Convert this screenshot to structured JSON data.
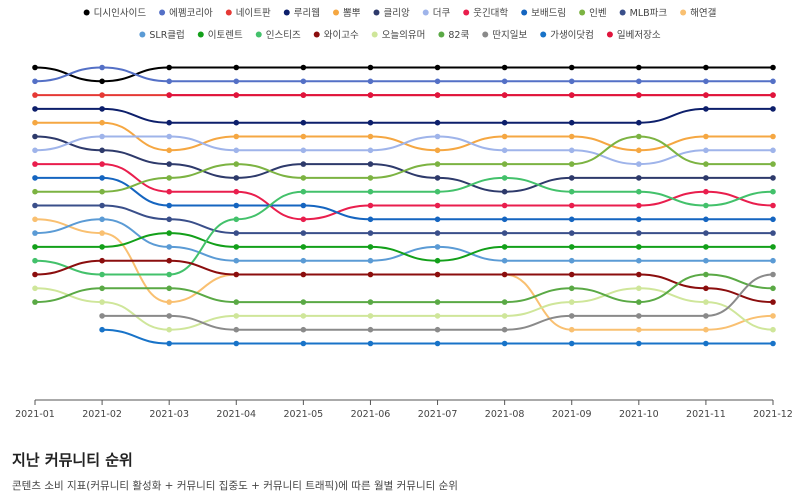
{
  "section": {
    "title": "지난 커뮤니티 순위",
    "description": "콘텐츠 소비 지표(커뮤니티 활성화 + 커뮤니티 집중도 + 커뮤니티 트래픽)에 따른 월별 커뮤니티 순위"
  },
  "chart_data": {
    "type": "line",
    "x": [
      "2021-01",
      "2021-02",
      "2021-03",
      "2021-04",
      "2021-05",
      "2021-06",
      "2021-07",
      "2021-08",
      "2021-09",
      "2021-10",
      "2021-11",
      "2021-12"
    ],
    "y_reversed": true,
    "y_range": [
      1,
      22
    ],
    "legend_position": "top",
    "grid": false,
    "series": [
      {
        "name": "디시인사이드",
        "color": "#000000",
        "values": [
          1,
          2,
          1,
          1,
          1,
          1,
          1,
          1,
          1,
          1,
          1,
          1
        ]
      },
      {
        "name": "에펨코리아",
        "color": "#5470c6",
        "values": [
          2,
          1,
          2,
          2,
          2,
          2,
          2,
          2,
          2,
          2,
          2,
          2
        ]
      },
      {
        "name": "네이트판",
        "color": "#e53935",
        "values": [
          3,
          3,
          3,
          3,
          3,
          3,
          3,
          3,
          3,
          3,
          3,
          3
        ]
      },
      {
        "name": "루리웹",
        "color": "#0d1f6b",
        "values": [
          4,
          4,
          5,
          5,
          5,
          5,
          5,
          5,
          5,
          5,
          4,
          4
        ]
      },
      {
        "name": "뽐뿌",
        "color": "#f5a742",
        "values": [
          5,
          5,
          7,
          6,
          6,
          6,
          7,
          6,
          6,
          7,
          6,
          6
        ]
      },
      {
        "name": "클리앙",
        "color": "#2e3a6b",
        "values": [
          6,
          7,
          8,
          9,
          8,
          8,
          9,
          10,
          9,
          9,
          9,
          9
        ]
      },
      {
        "name": "더쿠",
        "color": "#9fb4ea",
        "values": [
          7,
          6,
          6,
          7,
          7,
          7,
          6,
          7,
          7,
          8,
          7,
          7
        ]
      },
      {
        "name": "웃긴대학",
        "color": "#e91e4d",
        "values": [
          8,
          8,
          10,
          10,
          12,
          11,
          11,
          11,
          11,
          11,
          10,
          11
        ]
      },
      {
        "name": "보배드림",
        "color": "#1565c0",
        "values": [
          9,
          9,
          11,
          11,
          11,
          12,
          12,
          12,
          12,
          12,
          12,
          12
        ]
      },
      {
        "name": "인벤",
        "color": "#7cb342",
        "values": [
          10,
          10,
          9,
          8,
          9,
          9,
          8,
          8,
          8,
          6,
          8,
          8
        ]
      },
      {
        "name": "MLB파크",
        "color": "#3a4f8a",
        "values": [
          11,
          11,
          12,
          13,
          13,
          13,
          13,
          13,
          13,
          13,
          13,
          13
        ]
      },
      {
        "name": "해연갤",
        "color": "#f9c071",
        "values": [
          12,
          13,
          18,
          16,
          16,
          16,
          16,
          16,
          20,
          20,
          20,
          19
        ]
      },
      {
        "name": "SLR클럽",
        "color": "#5b9bd5",
        "values": [
          13,
          12,
          14,
          15,
          15,
          15,
          14,
          15,
          15,
          15,
          15,
          15
        ]
      },
      {
        "name": "이토렌트",
        "color": "#13a01a",
        "values": [
          14,
          14,
          13,
          14,
          14,
          14,
          15,
          14,
          14,
          14,
          14,
          14
        ]
      },
      {
        "name": "인스티즈",
        "color": "#43c16b",
        "values": [
          15,
          16,
          16,
          12,
          10,
          10,
          10,
          9,
          10,
          10,
          11,
          10
        ]
      },
      {
        "name": "와이고수",
        "color": "#8b0e0e",
        "values": [
          16,
          15,
          15,
          16,
          16,
          16,
          16,
          16,
          16,
          16,
          17,
          18
        ]
      },
      {
        "name": "오늘의유머",
        "color": "#cfe69a",
        "values": [
          17,
          18,
          20,
          19,
          19,
          19,
          19,
          19,
          18,
          17,
          18,
          20
        ]
      },
      {
        "name": "82쿡",
        "color": "#5aa945",
        "values": [
          18,
          17,
          17,
          18,
          18,
          18,
          18,
          18,
          17,
          18,
          16,
          17
        ]
      },
      {
        "name": "딴지일보",
        "color": "#8a8a8a",
        "values": [
          null,
          19,
          19,
          20,
          20,
          20,
          20,
          20,
          19,
          19,
          19,
          16
        ]
      },
      {
        "name": "가생이닷컴",
        "color": "#1873c8",
        "values": [
          null,
          20,
          21,
          21,
          21,
          21,
          21,
          21,
          21,
          21,
          21,
          21
        ]
      },
      {
        "name": "일베저장소",
        "color": "#e0143c",
        "values": [
          null,
          null,
          3,
          3,
          3,
          3,
          3,
          3,
          3,
          3,
          3,
          3
        ]
      }
    ]
  }
}
